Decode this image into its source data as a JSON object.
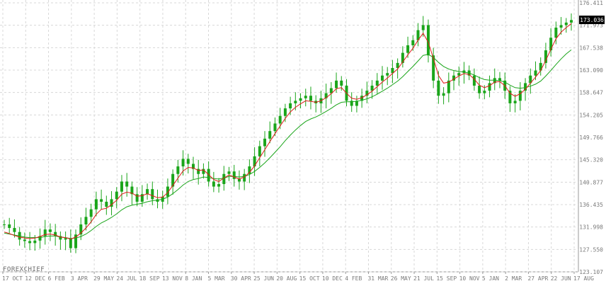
{
  "brand": {
    "watermark": "FOREXCHIEF"
  },
  "colors": {
    "background": "#ffffff",
    "grid": "#d8d8d8",
    "axis": "#9a9a9a",
    "candle": "#1aa51a",
    "ma_fast": "#e01a1a",
    "ma_slow": "#1aa51a",
    "last_price_bg": "#000000",
    "last_price_text": "#ffffff",
    "tick_text": "#7a7a7a"
  },
  "chart_data": {
    "type": "line",
    "title": "",
    "xlabel": "",
    "ylabel": "",
    "ylim": [
      123.107,
      176.411
    ],
    "y_scale": "linear",
    "grid": true,
    "y_axis_side": "right",
    "last_price": "173.036",
    "y_ticks": [
      "176.411",
      "171.973",
      "167.538",
      "163.090",
      "158.647",
      "154.205",
      "149.766",
      "145.320",
      "140.877",
      "136.435",
      "131.998",
      "127.550",
      "123.107"
    ],
    "x_ticks": [
      "17 OCT",
      "12 DEC",
      "6 FEB",
      "3 APR",
      "29 MAY",
      "24 JUL",
      "18 SEP",
      "13 NOV",
      "8 JAN",
      "5 MAR",
      "30 APR",
      "25 JUN",
      "20 AUG",
      "15 OCT",
      "10 DEC",
      "4 FEB",
      "31 MAR",
      "26 MAY",
      "21 JUL",
      "15 SEP",
      "10 NOV",
      "5 JAN",
      "2 MAR",
      "27 APR",
      "22 JUN",
      "17 AUG"
    ],
    "series": [
      {
        "name": "",
        "values": [
          132.5,
          131.8,
          131.0,
          129.5,
          129.2,
          128.8,
          129.3,
          130.2,
          131.5,
          131.0,
          130.2,
          129.5,
          129.8,
          127.8,
          130.5,
          132.5,
          134.0,
          135.5,
          137.5,
          137.0,
          136.0,
          137.5,
          139.0,
          141.0,
          140.0,
          138.5,
          137.0,
          138.5,
          139.5,
          137.5,
          137.0,
          138.0,
          140.0,
          142.5,
          144.0,
          145.5,
          144.5,
          143.5,
          142.5,
          143.5,
          141.0,
          140.0,
          140.5,
          142.5,
          143.0,
          141.5,
          141.0,
          142.5,
          144.0,
          146.0,
          148.0,
          149.5,
          151.0,
          152.5,
          154.0,
          155.5,
          156.5,
          157.0,
          157.5,
          158.0,
          157.0,
          156.5,
          157.5,
          158.5,
          159.5,
          161.0,
          160.0,
          157.0,
          156.0,
          157.0,
          158.0,
          159.0,
          160.0,
          161.0,
          162.0,
          162.5,
          163.5,
          164.5,
          166.5,
          168.0,
          169.0,
          171.0,
          172.0,
          166.0,
          161.0,
          158.0,
          158.5,
          161.0,
          162.0,
          162.5,
          163.0,
          162.0,
          160.0,
          158.5,
          159.0,
          160.5,
          161.5,
          161.0,
          159.0,
          156.5,
          157.0,
          159.0,
          160.5,
          162.0,
          163.0,
          164.5,
          167.0,
          169.5,
          171.5,
          172.0,
          172.5,
          173.0
        ]
      },
      {
        "name": "",
        "values": [
          131.0,
          130.7,
          130.3,
          130.0,
          129.8,
          129.7,
          129.8,
          130.1,
          130.5,
          130.6,
          130.4,
          130.0,
          129.9,
          129.6,
          130.0,
          130.8,
          131.8,
          133.0,
          134.5,
          135.5,
          135.7,
          136.4,
          137.3,
          138.5,
          138.9,
          138.7,
          138.1,
          138.2,
          138.6,
          138.2,
          137.8,
          137.9,
          138.8,
          140.2,
          141.7,
          143.1,
          143.8,
          143.7,
          143.2,
          143.3,
          142.4,
          141.4,
          141.0,
          141.7,
          142.3,
          141.9,
          141.5,
          141.9,
          142.8,
          144.1,
          145.7,
          147.3,
          148.9,
          150.5,
          152.0,
          153.5,
          154.8,
          155.7,
          156.4,
          157.0,
          156.9,
          156.7,
          157.0,
          157.6,
          158.4,
          159.4,
          159.6,
          158.5,
          157.5,
          157.3,
          157.6,
          158.2,
          158.9,
          159.8,
          160.7,
          161.5,
          162.4,
          163.3,
          164.7,
          166.1,
          167.4,
          169.0,
          170.4,
          168.6,
          165.4,
          162.0,
          160.5,
          160.7,
          161.3,
          161.9,
          162.4,
          162.2,
          161.3,
          160.1,
          159.6,
          160.0,
          160.7,
          160.8,
          160.0,
          158.5,
          157.9,
          158.4,
          159.3,
          160.5,
          161.7,
          163.0,
          165.0,
          167.2,
          169.3,
          170.6,
          171.5,
          172.3
        ]
      },
      {
        "name": "",
        "values": [
          130.8,
          130.6,
          130.4,
          130.2,
          130.0,
          129.9,
          129.9,
          129.9,
          130.1,
          130.2,
          130.2,
          130.0,
          129.9,
          129.7,
          129.8,
          130.1,
          130.6,
          131.3,
          132.1,
          132.8,
          133.3,
          133.9,
          134.6,
          135.4,
          136.0,
          136.3,
          136.5,
          136.7,
          137.0,
          137.2,
          137.3,
          137.5,
          137.9,
          138.6,
          139.4,
          140.3,
          141.0,
          141.4,
          141.6,
          141.9,
          141.8,
          141.6,
          141.5,
          141.7,
          142.0,
          142.0,
          141.9,
          142.0,
          142.4,
          143.0,
          143.8,
          144.7,
          145.7,
          146.8,
          147.9,
          149.1,
          150.2,
          151.2,
          152.1,
          152.9,
          153.4,
          153.8,
          154.3,
          154.9,
          155.5,
          156.2,
          156.7,
          156.8,
          156.8,
          156.9,
          157.1,
          157.4,
          157.8,
          158.3,
          158.9,
          159.5,
          160.2,
          160.9,
          161.8,
          162.8,
          163.8,
          164.9,
          166.0,
          166.2,
          165.6,
          164.6,
          163.8,
          163.3,
          163.0,
          162.8,
          162.7,
          162.5,
          162.1,
          161.6,
          161.2,
          161.1,
          161.1,
          161.0,
          160.7,
          160.1,
          159.6,
          159.5,
          159.6,
          159.9,
          160.3,
          160.9,
          161.9,
          163.0,
          164.2,
          165.3,
          166.3,
          167.1
        ]
      }
    ]
  }
}
